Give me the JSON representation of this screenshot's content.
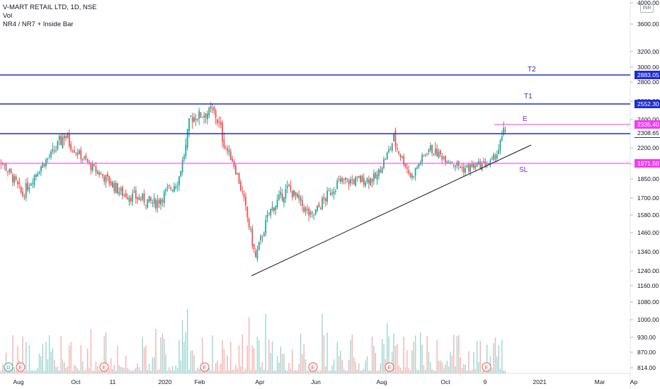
{
  "legend": {
    "symbol": "V-MART RETAIL LTD, 1D, NSE",
    "volume": "Vol",
    "indicator": "NR4 / NR7 + Inside Bar"
  },
  "currency_badge": "INR",
  "colors": {
    "bullish": "#26a69a",
    "bearish": "#ef5350",
    "level_blue": "#1f2ecc",
    "level_magenta": "#f23cf2",
    "trendline": "#131722",
    "axis_text": "#131722"
  },
  "chart_data": {
    "type": "candlestick",
    "title": "V-MART RETAIL LTD, 1D, NSE",
    "price_axis": {
      "ticks": [
        "4000.00",
        "3600.00",
        "3200.00",
        "3000.00",
        "2800.00",
        "2600.00",
        "2400.00",
        "2200.00",
        "2000.00",
        "1850.00",
        "1700.00",
        "1580.00",
        "1460.00",
        "1340.00",
        "1240.00",
        "1160.00",
        "1080.00",
        "1000.00",
        "930.00",
        "870.00",
        "814.00"
      ],
      "scale": "log"
    },
    "time_axis": {
      "ticks": [
        "Aug",
        "Oct",
        "11",
        "2020",
        "Feb",
        "Apr",
        "Jun",
        "Aug",
        "Oct",
        "9",
        "2021",
        "Mar",
        "Ap"
      ]
    },
    "price_path_keypoints": [
      {
        "date": "2019-07-08",
        "price": 2130
      },
      {
        "date": "2019-08-05",
        "price": 1720
      },
      {
        "date": "2019-09-16",
        "price": 2300
      },
      {
        "date": "2019-10-14",
        "price": 1960
      },
      {
        "date": "2019-11-12",
        "price": 1740
      },
      {
        "date": "2019-12-16",
        "price": 1660
      },
      {
        "date": "2020-01-08",
        "price": 1840
      },
      {
        "date": "2020-01-20",
        "price": 2420
      },
      {
        "date": "2020-02-12",
        "price": 2490
      },
      {
        "date": "2020-03-02",
        "price": 2050
      },
      {
        "date": "2020-03-25",
        "price": 1300
      },
      {
        "date": "2020-04-08",
        "price": 1600
      },
      {
        "date": "2020-04-27",
        "price": 1780
      },
      {
        "date": "2020-05-20",
        "price": 1560
      },
      {
        "date": "2020-06-15",
        "price": 1820
      },
      {
        "date": "2020-07-24",
        "price": 1860
      },
      {
        "date": "2020-08-10",
        "price": 2270
      },
      {
        "date": "2020-08-28",
        "price": 1860
      },
      {
        "date": "2020-09-14",
        "price": 2190
      },
      {
        "date": "2020-10-19",
        "price": 1950
      },
      {
        "date": "2020-11-16",
        "price": 2020
      },
      {
        "date": "2020-11-30",
        "price": 2330
      }
    ],
    "levels": [
      {
        "name": "T2",
        "price": "2883.05",
        "color": "blue"
      },
      {
        "name": "T1",
        "price": "2552.30",
        "color": "blue"
      },
      {
        "name": "E",
        "price": "2335.40",
        "color": "magenta"
      },
      {
        "name": "",
        "price": "2245.05",
        "color": "blue"
      },
      {
        "name": "SL",
        "price": "1971.50",
        "color": "magenta"
      }
    ],
    "last_price": "2308.65",
    "trendline": {
      "from": {
        "date": "2020-03-25",
        "price": 1200
      },
      "to": {
        "date": "2020-12-07",
        "price": 2130
      }
    },
    "event_markers": [
      {
        "label": "D"
      },
      {
        "label": "E"
      },
      {
        "label": "E"
      },
      {
        "label": "E"
      },
      {
        "label": "E"
      },
      {
        "label": "E"
      },
      {
        "label": "E"
      }
    ]
  }
}
